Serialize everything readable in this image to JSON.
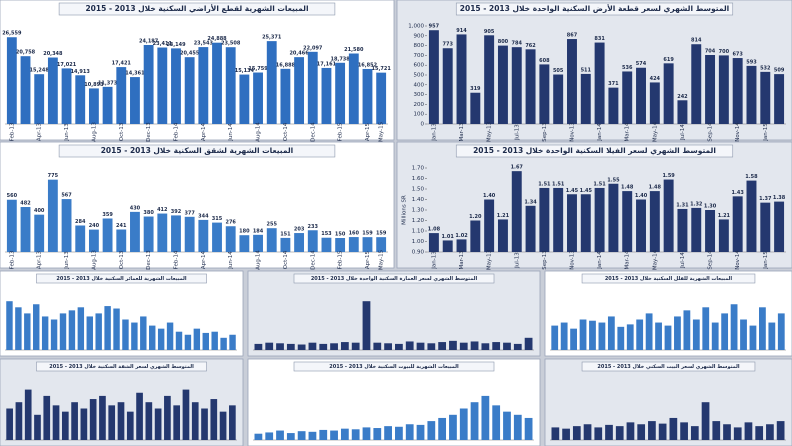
{
  "chart_data": [
    {
      "type": "bar",
      "title": "المبيعات الشهرية لقطع الأراضي السكنية خلال 2013 - 2015",
      "color": "#2f6fc0",
      "categories": [
        "Feb-13",
        null,
        "Apr-13",
        null,
        "Jun-13",
        null,
        "Aug-13",
        null,
        "Oct-13",
        null,
        "Dec-13",
        null,
        "Feb-14",
        null,
        "Apr-14",
        null,
        "Jun-14",
        null,
        "Aug-14",
        null,
        "Oct-14",
        null,
        "Dec-14",
        null,
        "Feb-15",
        null,
        "Apr-15",
        "May-15"
      ],
      "values": [
        26559,
        20758,
        15248,
        20348,
        17021,
        14913,
        10893,
        11373,
        17421,
        14361,
        24187,
        23411,
        23149,
        20455,
        23543,
        24888,
        23508,
        15134,
        15759,
        25371,
        16888,
        20466,
        22097,
        17161,
        18738,
        21580,
        16852,
        15721
      ],
      "value_labels": [
        "26,559",
        "20,758",
        "15,248",
        "20,348",
        "17,021",
        "14,913",
        "10,893",
        "11,373",
        "17,421",
        "14,361",
        "24,187",
        "23,411",
        "23,149",
        "20,455",
        "23,543",
        "24,888",
        "23,508",
        "15,134",
        "15,759",
        "25,371",
        "16,888",
        "20,466",
        "22,097",
        "17,161",
        "18,738",
        "21,580",
        "16,852",
        "15,721"
      ],
      "ylim": [
        0,
        30000
      ]
    },
    {
      "type": "bar",
      "title": "المتوسط الشهري لسعر قطعة الأرض السكنية الواحدة خلال 2013 - 2015",
      "color": "#24386f",
      "categories": [
        "Jan-13",
        null,
        "Mar-13",
        null,
        "May-13",
        null,
        "Jul-13",
        null,
        "Sep-13",
        null,
        "Nov-13",
        null,
        "Jan-14",
        null,
        "Mar-14",
        null,
        "May-14",
        null,
        "Jul-14",
        null,
        "Sep-14",
        null,
        "Nov-14",
        null,
        "Jan-15",
        null
      ],
      "values": [
        957,
        773,
        914,
        319,
        905,
        800,
        784,
        762,
        608,
        505,
        867,
        511,
        831,
        371,
        536,
        574,
        424,
        619,
        242,
        814,
        704,
        700,
        673,
        593,
        532,
        509
      ],
      "ylim": [
        0,
        1000
      ],
      "yticks": [
        0,
        100,
        200,
        300,
        400,
        500,
        600,
        700,
        800,
        900,
        {
          "value": 1000,
          "label": "1,000"
        }
      ]
    },
    {
      "type": "bar",
      "title": "المبيعات الشهرية لشقق السكنية خلال 2013 - 2015",
      "color": "#3a7cc8",
      "categories": [
        "Feb-13",
        null,
        "Apr-13",
        null,
        "Jun-13",
        null,
        "Aug-13",
        null,
        "Oct-13",
        null,
        "Dec-13",
        null,
        "Feb-14",
        null,
        "Apr-14",
        null,
        "Jun-14",
        null,
        "Aug-14",
        null,
        "Oct-14",
        null,
        "Dec-14",
        null,
        "Feb-15",
        null,
        "Apr-15",
        "May-15"
      ],
      "values": [
        560,
        482,
        400,
        775,
        567,
        284,
        240,
        359,
        241,
        430,
        380,
        412,
        392,
        377,
        344,
        315,
        276,
        180,
        184,
        255,
        151,
        203,
        233,
        153,
        150,
        160,
        159,
        159
      ],
      "ylim": [
        0,
        900
      ]
    },
    {
      "type": "bar",
      "title": "المتوسط الشهري لسعر الفيلا السكنية الواحدة خلال 2013 - 2015",
      "ylabel": "Millions SR",
      "color": "#24386f",
      "categories": [
        "Jan-13",
        null,
        "Mar-13",
        null,
        "May-13",
        null,
        "Jul-13",
        null,
        "Sep-13",
        null,
        "Nov-13",
        null,
        "Jan-14",
        null,
        "Mar-14",
        null,
        "May-14",
        null,
        "Jul-14",
        null,
        "Sep-14",
        null,
        "Nov-14",
        null,
        "Jan-15",
        null
      ],
      "values": [
        1.08,
        1.01,
        1.02,
        1.2,
        1.4,
        1.21,
        1.67,
        1.34,
        1.51,
        1.51,
        1.45,
        1.45,
        1.51,
        1.55,
        1.48,
        1.4,
        1.48,
        1.59,
        1.31,
        1.32,
        1.3,
        1.21,
        1.43,
        1.58,
        1.37,
        1.38
      ],
      "value_labels": [
        "1.08",
        "1.01",
        "1.02",
        "1.20",
        "1.40",
        "1.21",
        "1.67",
        "1.34",
        "1.51",
        "1.51",
        "1.45",
        "1.45",
        "1.51",
        "1.55",
        "1.48",
        "1.40",
        "1.48",
        "1.59",
        "1.31",
        "1.32",
        "1.30",
        "1.21",
        "1.43",
        "1.58",
        "1.37",
        "1.38"
      ],
      "ylim": [
        0.9,
        1.7
      ],
      "yticks": [
        {
          "value": 0.9,
          "label": "0.90"
        },
        {
          "value": 1.0,
          "label": "1.00"
        },
        {
          "value": 1.1,
          "label": "1.10"
        },
        {
          "value": 1.2,
          "label": "1.20"
        },
        {
          "value": 1.3,
          "label": "1.30"
        },
        {
          "value": 1.4,
          "label": "1.40"
        },
        {
          "value": 1.5,
          "label": "1.50"
        },
        {
          "value": 1.6,
          "label": "1.60"
        },
        {
          "value": 1.7,
          "label": "1.70"
        }
      ]
    },
    {
      "type": "bar",
      "title": "المبيعات الشهرية للعمائر السكنية خلال 2013 - 2015",
      "color": "#3a7cc8",
      "values": [
        80,
        70,
        60,
        75,
        55,
        50,
        60,
        65,
        70,
        55,
        60,
        72,
        68,
        50,
        45,
        55,
        40,
        35,
        45,
        30,
        25,
        35,
        28,
        30,
        20,
        25
      ],
      "ylim": [
        0,
        100
      ]
    },
    {
      "type": "bar",
      "title": "المتوسط الشهري لسعر العمارة السكنية الواحدة خلال 2013 - 2015",
      "color": "#24386f",
      "values": [
        10,
        12,
        11,
        10,
        9,
        12,
        10,
        11,
        13,
        12,
        80,
        12,
        11,
        10,
        14,
        12,
        11,
        13,
        15,
        12,
        14,
        11,
        13,
        12,
        10,
        20
      ],
      "ylim": [
        0,
        100
      ]
    },
    {
      "type": "bar",
      "title": "المبيعات الشهرية للفلل السكنية خلال 2013 - 2015",
      "color": "#3a7cc8",
      "values": [
        40,
        45,
        35,
        50,
        48,
        45,
        55,
        38,
        42,
        50,
        60,
        45,
        40,
        55,
        65,
        50,
        70,
        45,
        60,
        75,
        50,
        40,
        70,
        45,
        60
      ],
      "ylim": [
        0,
        100
      ]
    },
    {
      "type": "bar",
      "title": "المتوسط الشهري لسعر الشقة السكنية خلال 2013 - 2015",
      "color": "#24386f",
      "values": [
        50,
        60,
        80,
        40,
        70,
        55,
        45,
        60,
        50,
        65,
        70,
        55,
        60,
        45,
        75,
        60,
        50,
        70,
        55,
        80,
        60,
        50,
        65,
        45,
        55
      ],
      "ylim": [
        0,
        100
      ]
    },
    {
      "type": "bar",
      "title": "المبيعات الشهرية للبيوت السكنية خلال 2013 - 2015",
      "color": "#3a7cc8",
      "values": [
        10,
        12,
        15,
        11,
        14,
        13,
        16,
        15,
        18,
        17,
        20,
        19,
        22,
        21,
        25,
        24,
        30,
        35,
        40,
        50,
        60,
        70,
        55,
        45,
        40,
        35
      ],
      "ylim": [
        0,
        100
      ]
    },
    {
      "type": "bar",
      "title": "المتوسط الشهري لسعر البيت السكني خلال 2013 - 2015",
      "color": "#24386f",
      "values": [
        20,
        18,
        22,
        25,
        20,
        24,
        22,
        28,
        25,
        30,
        26,
        35,
        28,
        22,
        60,
        30,
        25,
        20,
        28,
        22,
        25,
        30
      ],
      "ylim": [
        0,
        100
      ]
    }
  ]
}
